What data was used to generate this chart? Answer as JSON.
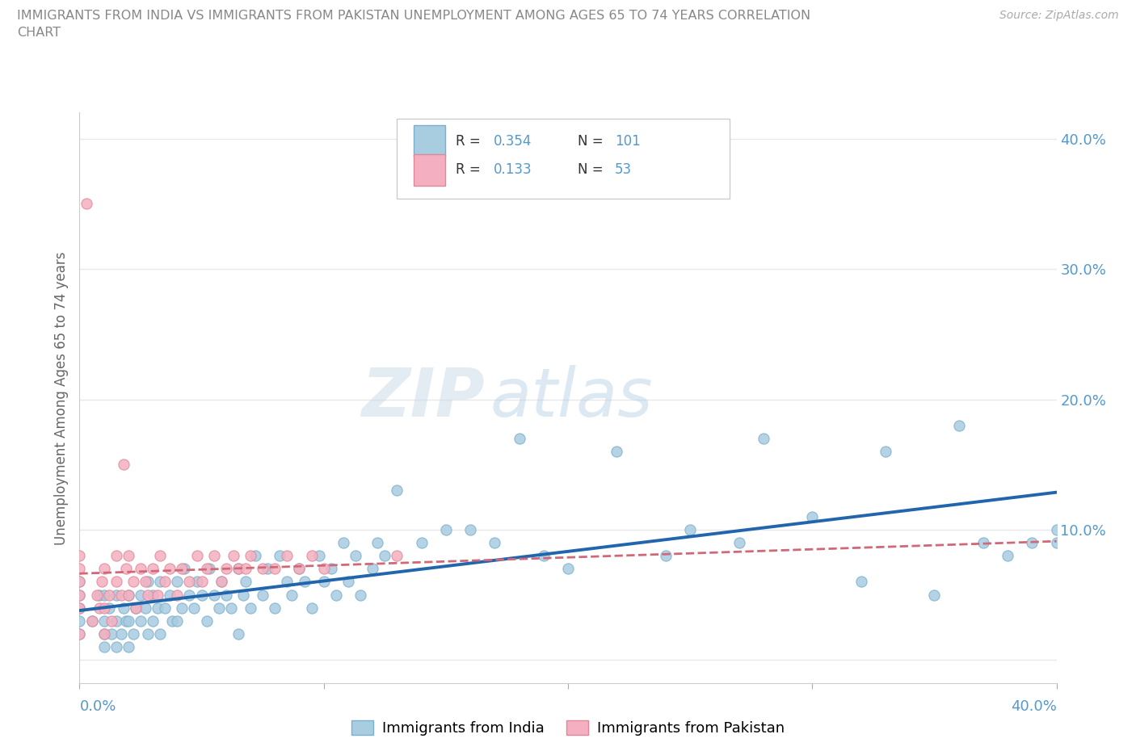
{
  "title_line1": "IMMIGRANTS FROM INDIA VS IMMIGRANTS FROM PAKISTAN UNEMPLOYMENT AMONG AGES 65 TO 74 YEARS CORRELATION",
  "title_line2": "CHART",
  "source": "Source: ZipAtlas.com",
  "ylabel": "Unemployment Among Ages 65 to 74 years",
  "xlim": [
    0.0,
    0.4
  ],
  "ylim": [
    -0.018,
    0.42
  ],
  "india_color": "#a8cce0",
  "india_edge": "#7ab0cc",
  "pakistan_color": "#f4b0c0",
  "pakistan_edge": "#e08898",
  "india_line_color": "#2166AC",
  "pakistan_line_color": "#d06878",
  "R_india": 0.354,
  "N_india": 101,
  "R_pakistan": 0.133,
  "N_pakistan": 53,
  "watermark_zip": "ZIP",
  "watermark_atlas": "atlas",
  "background_color": "#ffffff",
  "grid_color": "#e8e8e8",
  "title_color": "#888888",
  "axis_label_color": "#5599cc",
  "ytick_vals": [
    0.0,
    0.1,
    0.2,
    0.3,
    0.4
  ],
  "ytick_labels": [
    "",
    "10.0%",
    "20.0%",
    "30.0%",
    "40.0%"
  ],
  "india_x": [
    0.0,
    0.0,
    0.0,
    0.0,
    0.0,
    0.005,
    0.008,
    0.01,
    0.01,
    0.01,
    0.01,
    0.012,
    0.013,
    0.015,
    0.015,
    0.015,
    0.017,
    0.018,
    0.019,
    0.02,
    0.02,
    0.02,
    0.022,
    0.023,
    0.025,
    0.025,
    0.027,
    0.028,
    0.028,
    0.03,
    0.03,
    0.032,
    0.033,
    0.033,
    0.035,
    0.037,
    0.038,
    0.04,
    0.04,
    0.042,
    0.043,
    0.045,
    0.047,
    0.048,
    0.05,
    0.052,
    0.053,
    0.055,
    0.057,
    0.058,
    0.06,
    0.062,
    0.065,
    0.065,
    0.067,
    0.068,
    0.07,
    0.072,
    0.075,
    0.077,
    0.08,
    0.082,
    0.085,
    0.087,
    0.09,
    0.092,
    0.095,
    0.098,
    0.1,
    0.103,
    0.105,
    0.108,
    0.11,
    0.113,
    0.115,
    0.12,
    0.122,
    0.125,
    0.13,
    0.14,
    0.15,
    0.16,
    0.17,
    0.18,
    0.19,
    0.2,
    0.22,
    0.24,
    0.25,
    0.27,
    0.28,
    0.3,
    0.32,
    0.33,
    0.35,
    0.36,
    0.37,
    0.38,
    0.39,
    0.4,
    0.4
  ],
  "india_y": [
    0.02,
    0.04,
    0.05,
    0.03,
    0.06,
    0.03,
    0.05,
    0.01,
    0.03,
    0.05,
    0.02,
    0.04,
    0.02,
    0.01,
    0.03,
    0.05,
    0.02,
    0.04,
    0.03,
    0.01,
    0.03,
    0.05,
    0.02,
    0.04,
    0.03,
    0.05,
    0.04,
    0.02,
    0.06,
    0.03,
    0.05,
    0.04,
    0.02,
    0.06,
    0.04,
    0.05,
    0.03,
    0.03,
    0.06,
    0.04,
    0.07,
    0.05,
    0.04,
    0.06,
    0.05,
    0.03,
    0.07,
    0.05,
    0.04,
    0.06,
    0.05,
    0.04,
    0.02,
    0.07,
    0.05,
    0.06,
    0.04,
    0.08,
    0.05,
    0.07,
    0.04,
    0.08,
    0.06,
    0.05,
    0.07,
    0.06,
    0.04,
    0.08,
    0.06,
    0.07,
    0.05,
    0.09,
    0.06,
    0.08,
    0.05,
    0.07,
    0.09,
    0.08,
    0.13,
    0.09,
    0.1,
    0.1,
    0.09,
    0.17,
    0.08,
    0.07,
    0.16,
    0.08,
    0.1,
    0.09,
    0.17,
    0.11,
    0.06,
    0.16,
    0.05,
    0.18,
    0.09,
    0.08,
    0.09,
    0.09,
    0.1
  ],
  "pakistan_x": [
    0.0,
    0.0,
    0.0,
    0.0,
    0.0,
    0.0,
    0.003,
    0.005,
    0.007,
    0.008,
    0.009,
    0.01,
    0.01,
    0.01,
    0.012,
    0.013,
    0.015,
    0.015,
    0.017,
    0.018,
    0.019,
    0.02,
    0.02,
    0.022,
    0.023,
    0.025,
    0.027,
    0.028,
    0.03,
    0.032,
    0.033,
    0.035,
    0.037,
    0.04,
    0.042,
    0.045,
    0.048,
    0.05,
    0.052,
    0.055,
    0.058,
    0.06,
    0.063,
    0.065,
    0.068,
    0.07,
    0.075,
    0.08,
    0.085,
    0.09,
    0.095,
    0.1,
    0.13
  ],
  "pakistan_y": [
    0.02,
    0.04,
    0.05,
    0.06,
    0.07,
    0.08,
    0.35,
    0.03,
    0.05,
    0.04,
    0.06,
    0.02,
    0.04,
    0.07,
    0.05,
    0.03,
    0.06,
    0.08,
    0.05,
    0.15,
    0.07,
    0.05,
    0.08,
    0.06,
    0.04,
    0.07,
    0.06,
    0.05,
    0.07,
    0.05,
    0.08,
    0.06,
    0.07,
    0.05,
    0.07,
    0.06,
    0.08,
    0.06,
    0.07,
    0.08,
    0.06,
    0.07,
    0.08,
    0.07,
    0.07,
    0.08,
    0.07,
    0.07,
    0.08,
    0.07,
    0.08,
    0.07,
    0.08
  ]
}
